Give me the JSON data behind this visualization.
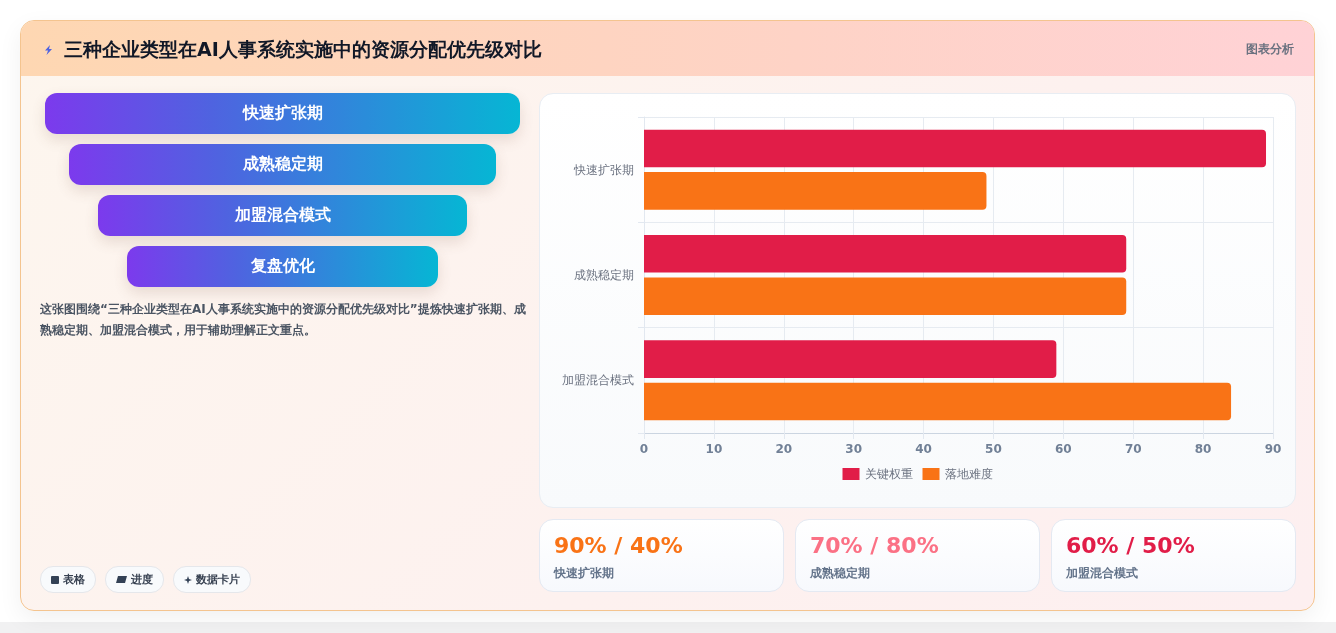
{
  "chart_data": {
    "type": "bar",
    "orientation": "horizontal",
    "title": "三种企业类型在AI人事系统实施中的资源分配优先级对比",
    "categories": [
      "快速扩张期",
      "成熟稳定期",
      "加盟混合模式"
    ],
    "series": [
      {
        "name": "关键权重",
        "color": "#e11d48",
        "values": [
          89,
          69,
          59
        ]
      },
      {
        "name": "落地难度",
        "color": "#f97316",
        "values": [
          49,
          69,
          84
        ]
      }
    ],
    "xlim": [
      0,
      90
    ],
    "xticks": [
      0,
      10,
      20,
      30,
      40,
      50,
      60,
      70,
      80,
      90
    ],
    "grid": true,
    "legend": "bottom",
    "annotations": [
      "图表分析",
      "快速扩张期",
      "成熟稳定期",
      "加盟混合模式",
      "复盘优化",
      "这张图围绕“三种企业类型在AI人事系统实施中的资源分配优先级对比”提炼快速扩张期、成熟稳定期、加盟混合模式，用于辅助理解正文重点。",
      "表格",
      "进度",
      "数据卡片",
      "90% / 40%",
      "快速扩张期",
      "70% / 80%",
      "成熟稳定期",
      "60% / 50%",
      "加盟混合模式"
    ]
  }
}
